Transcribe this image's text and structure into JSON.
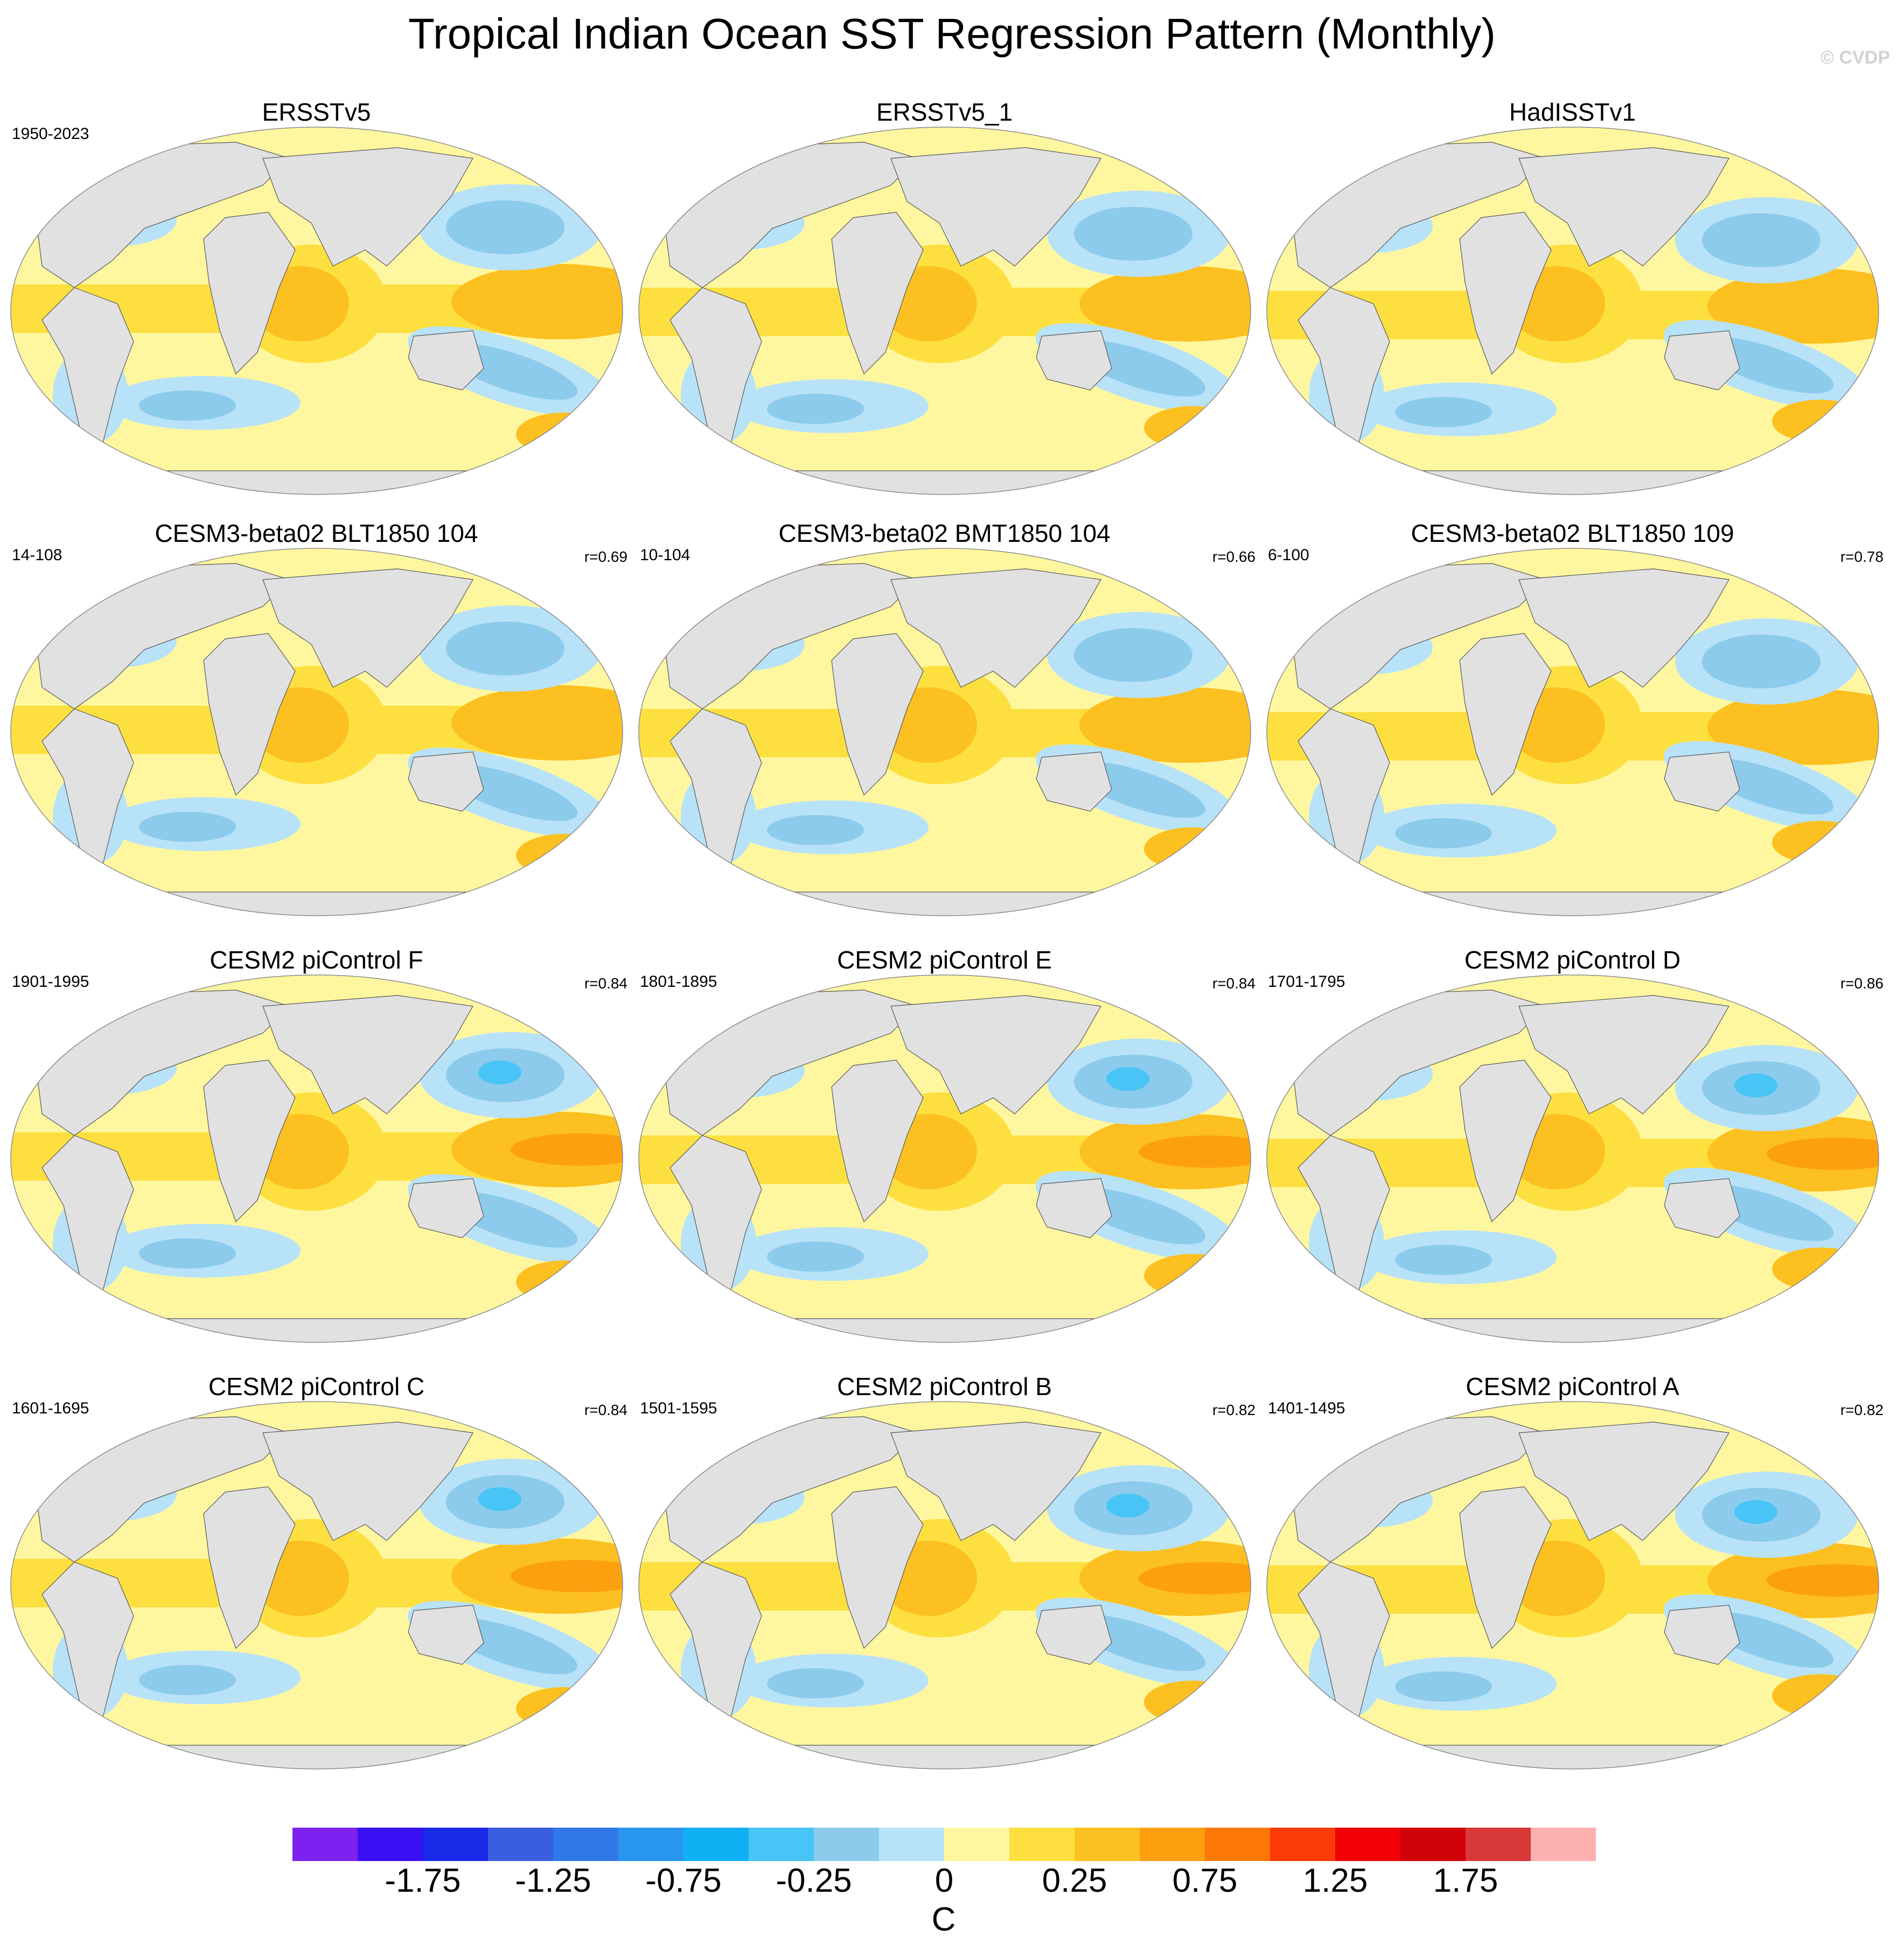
{
  "title": "Tropical Indian Ocean SST Regression Pattern (Monthly)",
  "watermark": "© CVDP",
  "panels": [
    {
      "title": "ERSSTv5",
      "years": "1950-2023",
      "corr": ""
    },
    {
      "title": "ERSSTv5_1",
      "years": "",
      "corr": ""
    },
    {
      "title": "HadISSTv1",
      "years": "",
      "corr": ""
    },
    {
      "title": "CESM3-beta02 BLT1850 104",
      "years": "14-108",
      "corr": "r=0.69"
    },
    {
      "title": "CESM3-beta02 BMT1850 104",
      "years": "10-104",
      "corr": "r=0.66"
    },
    {
      "title": "CESM3-beta02 BLT1850 109",
      "years": "6-100",
      "corr": "r=0.78"
    },
    {
      "title": "CESM2 piControl F",
      "years": "1901-1995",
      "corr": "r=0.84"
    },
    {
      "title": "CESM2 piControl E",
      "years": "1801-1895",
      "corr": "r=0.84"
    },
    {
      "title": "CESM2 piControl D",
      "years": "1701-1795",
      "corr": "r=0.86"
    },
    {
      "title": "CESM2 piControl C",
      "years": "1601-1695",
      "corr": "r=0.84"
    },
    {
      "title": "CESM2 piControl B",
      "years": "1501-1595",
      "corr": "r=0.82"
    },
    {
      "title": "CESM2 piControl A",
      "years": "1401-1495",
      "corr": "r=0.82"
    }
  ],
  "colorbar": {
    "colors": [
      "#7d20f0",
      "#3a10f5",
      "#1a2ae8",
      "#3a5ee0",
      "#3078e8",
      "#2896f0",
      "#10b0f4",
      "#48c4f6",
      "#8ccbec",
      "#b8e2f8",
      "#fff7a0",
      "#fde040",
      "#fcc020",
      "#fca010",
      "#fc7808",
      "#fc3c08",
      "#f40008",
      "#d00008",
      "#d83838",
      "#fcb0b0"
    ],
    "labels": [
      "-1.75",
      "-1.25",
      "-0.75",
      "-0.25",
      "0",
      "0.25",
      "0.75",
      "1.25",
      "1.75"
    ],
    "units": "C"
  },
  "map_colors": {
    "land": "#e1e1e1",
    "ocean_neutral": "#fff7a0",
    "warm": "#fde040",
    "warmer": "#fcc020",
    "warmest": "#fca010",
    "cool": "#b8e2f8",
    "cooler": "#8ccbec",
    "coolest": "#48c4f6"
  }
}
